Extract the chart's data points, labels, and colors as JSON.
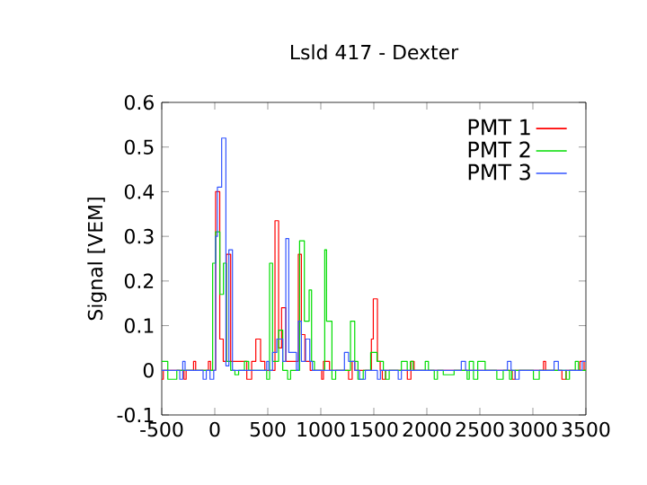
{
  "chart_data": {
    "type": "step",
    "title": "Lsld 417 - Dexter",
    "ylabel": "Signal [VEM]",
    "xlim": [
      -500,
      3500
    ],
    "ylim": [
      -0.1,
      0.6
    ],
    "xticks": [
      -500,
      0,
      500,
      1000,
      1500,
      2000,
      2500,
      3000,
      3500
    ],
    "yticks": [
      -0.1,
      0,
      0.1,
      0.2,
      0.3,
      0.4,
      0.5,
      0.6
    ],
    "legend": "top right",
    "grid": false,
    "series": [
      {
        "name": "PMT 1",
        "color": "#ff0000",
        "x": [
          -500,
          -485,
          -290,
          -270,
          -200,
          -180,
          -60,
          -40,
          8,
          47,
          80,
          110,
          150,
          302,
          348,
          387,
          432,
          472,
          568,
          602,
          630,
          670,
          788,
          817,
          850,
          900,
          1008,
          1025,
          1082,
          1262,
          1296,
          1320,
          1477,
          1495,
          1534,
          1560,
          1580,
          1610,
          1816,
          1850,
          1880,
          2805,
          2833,
          3100,
          3120,
          3274,
          3313,
          3444,
          3483,
          3500
        ],
        "values": [
          -0.02,
          0,
          -0.02,
          0,
          0.02,
          0,
          0.02,
          0,
          0.4,
          0.07,
          0.02,
          0.26,
          0.02,
          -0.02,
          0.02,
          0.07,
          0.02,
          0,
          0.335,
          0.05,
          0.14,
          0.02,
          0.26,
          0.08,
          0.02,
          0,
          -0.02,
          0.02,
          0,
          -0.02,
          0.02,
          0,
          0.07,
          0.16,
          0.02,
          0,
          -0.02,
          0,
          -0.02,
          0.02,
          0,
          -0.02,
          0,
          0.02,
          0,
          -0.02,
          0,
          0.02,
          0,
          0
        ]
      },
      {
        "name": "PMT 2",
        "color": "#00dd00",
        "x": [
          -500,
          -443,
          -358,
          -20,
          8,
          48,
          82,
          110,
          150,
          190,
          225,
          280,
          320,
          490,
          517,
          545,
          602,
          641,
          687,
          715,
          800,
          845,
          890,
          913,
          940,
          1037,
          1054,
          1105,
          1140,
          1280,
          1320,
          1350,
          1400,
          1470,
          1530,
          1590,
          1612,
          1645,
          1760,
          1815,
          1845,
          1870,
          1985,
          2015,
          2070,
          2100,
          2155,
          2257,
          2380,
          2400,
          2440,
          2480,
          2550,
          2660,
          2720,
          2780,
          2800,
          3005,
          3060,
          3313,
          3345,
          3400,
          3430,
          3500
        ],
        "values": [
          0.02,
          -0.02,
          0,
          0.24,
          0.31,
          0.17,
          0.24,
          0.02,
          0,
          -0.01,
          0,
          0.02,
          0,
          -0.02,
          0.24,
          0.02,
          0.09,
          0,
          -0.02,
          0,
          0.29,
          0.11,
          0.18,
          0.02,
          0,
          0.27,
          0.11,
          -0.02,
          0,
          0.11,
          0.02,
          -0.02,
          0,
          0.04,
          0.02,
          0,
          -0.02,
          0,
          0.02,
          0,
          0.02,
          0,
          0.02,
          0,
          -0.02,
          0,
          -0.01,
          0,
          -0.02,
          0.02,
          -0.02,
          0.02,
          0,
          -0.02,
          0,
          -0.02,
          0,
          -0.02,
          0,
          -0.02,
          0,
          0.02,
          0,
          0
        ]
      },
      {
        "name": "PMT 3",
        "color": "#3355ff",
        "x": [
          -500,
          -330,
          -302,
          -280,
          -110,
          -80,
          -45,
          -10,
          8,
          25,
          65,
          105,
          133,
          167,
          490,
          510,
          545,
          585,
          641,
          670,
          698,
          770,
          788,
          817,
          857,
          896,
          920,
          1223,
          1262,
          1320,
          1365,
          1420,
          1534,
          1562,
          1730,
          1760,
          2325,
          2365,
          2760,
          2794,
          2833,
          2870,
          3200,
          3240,
          3465,
          3500
        ],
        "values": [
          0,
          -0.02,
          0.02,
          0,
          -0.02,
          0,
          -0.02,
          0,
          0.3,
          0.41,
          0.52,
          0.01,
          0.27,
          0,
          0.02,
          0,
          0.04,
          0.07,
          0.02,
          0.295,
          0.04,
          0,
          0.11,
          0.02,
          0.07,
          0.02,
          0,
          0.04,
          0.02,
          0,
          -0.02,
          0,
          -0.02,
          0,
          -0.02,
          0,
          0.02,
          0,
          0.02,
          0,
          -0.02,
          0,
          0.02,
          0,
          0.02,
          0.02
        ]
      }
    ]
  }
}
